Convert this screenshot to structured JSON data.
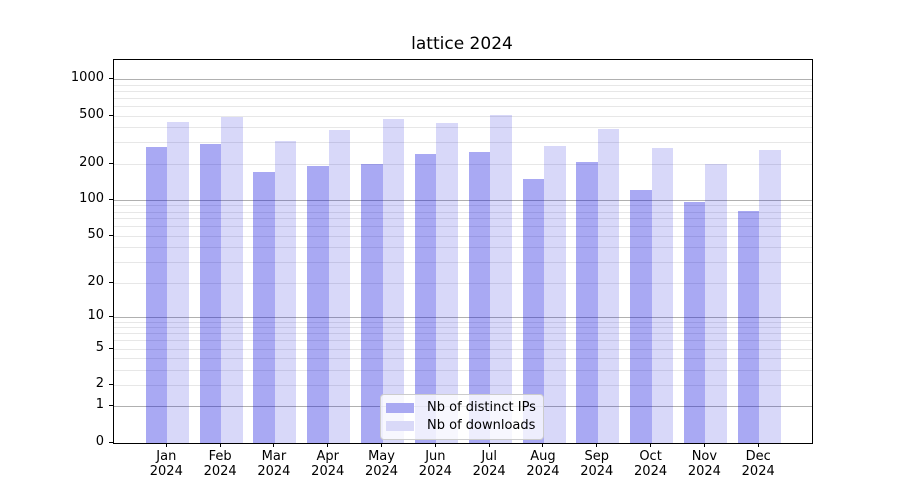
{
  "figure": {
    "background": "#ffffff"
  },
  "chart_data": {
    "type": "bar",
    "title": "lattice 2024",
    "categories": [
      "Jan",
      "Feb",
      "Mar",
      "Apr",
      "May",
      "Jun",
      "Jul",
      "Aug",
      "Sep",
      "Oct",
      "Nov",
      "Dec"
    ],
    "category_year": "2024",
    "series": [
      {
        "name": "Nb of distinct IPs",
        "swatch_color": "#a9a9f2",
        "fill": "rgba(10,10,220,0.35)",
        "values": [
          273,
          290,
          170,
          193,
          200,
          242,
          250,
          148,
          208,
          122,
          97,
          81
        ]
      },
      {
        "name": "Nb of downloads",
        "swatch_color": "#d9d9f8",
        "fill": "rgba(10,10,220,0.16)",
        "values": [
          440,
          490,
          308,
          382,
          472,
          431,
          508,
          280,
          389,
          270,
          200,
          258
        ]
      }
    ],
    "yscale": "log10(value+1)",
    "ylim": [
      0,
      1440
    ],
    "yticks": [
      0,
      1,
      2,
      5,
      10,
      20,
      50,
      100,
      200,
      500,
      1000
    ],
    "major_grid_values": [
      1,
      10,
      100,
      1000
    ],
    "minor_grid_values": [
      2,
      3,
      4,
      5,
      6,
      7,
      8,
      9,
      20,
      30,
      40,
      50,
      60,
      70,
      80,
      90,
      200,
      300,
      400,
      500,
      600,
      700,
      800,
      900
    ],
    "grid": "on",
    "legend_position": "lower center",
    "colors": {
      "major_grid": "#b0b0b0",
      "minor_grid": "#e7e7e7",
      "axis_frame": "#000000",
      "background": "#ffffff"
    }
  }
}
